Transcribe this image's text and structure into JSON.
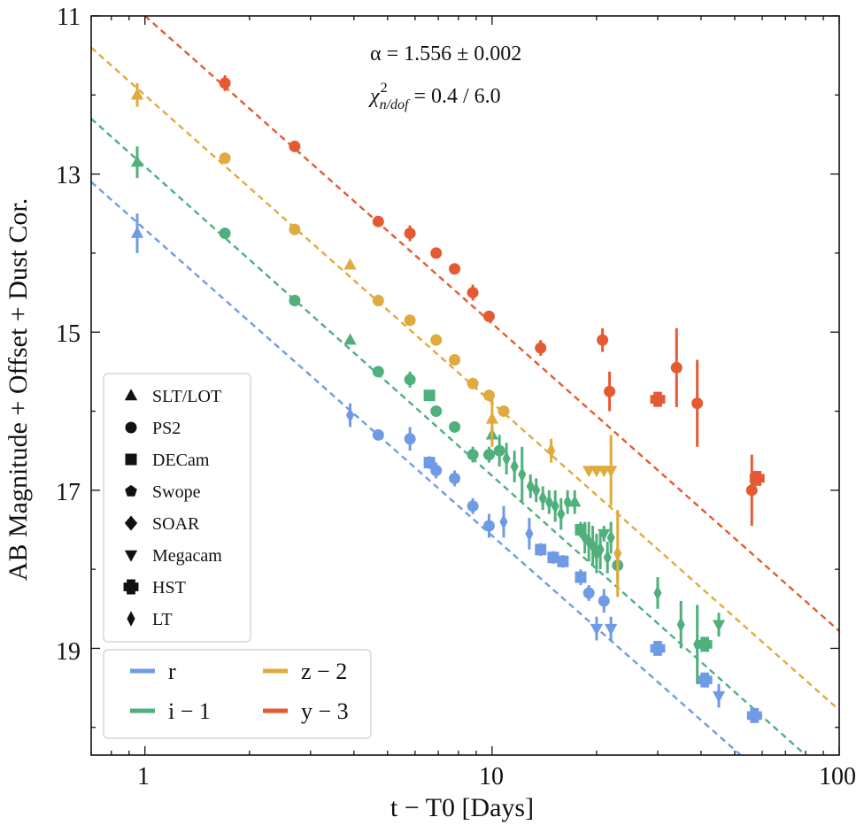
{
  "chart_data": {
    "type": "scatter",
    "xlabel": "t − T0 [Days]",
    "ylabel": "AB Magnitude + Offset + Dust Cor.",
    "xscale": "log",
    "xlim": [
      0.7,
      100
    ],
    "ylim": [
      20.35,
      11
    ],
    "y_inverted": true,
    "x_tick_labels": [
      "1",
      "10",
      "100"
    ],
    "y_tick_labels": [
      "11",
      "13",
      "15",
      "17",
      "19"
    ],
    "annotations": {
      "alpha": "α = 1.556 ± 0.002",
      "chi_symbol": "χ",
      "chi_sup": "2",
      "chi_sub": "n/dof",
      "chi_value": " = 0.4 / 6.0"
    },
    "instrument_legend": [
      {
        "label": "SLT/LOT",
        "marker": "triangle-up"
      },
      {
        "label": "PS2",
        "marker": "circle"
      },
      {
        "label": "DECam",
        "marker": "square"
      },
      {
        "label": "Swope",
        "marker": "pentagon"
      },
      {
        "label": "SOAR",
        "marker": "diamond"
      },
      {
        "label": "Megacam",
        "marker": "triangle-down"
      },
      {
        "label": "HST",
        "marker": "plus"
      },
      {
        "label": "LT",
        "marker": "thin-diamond"
      }
    ],
    "series": [
      {
        "name": "r",
        "color": "#6f9be6",
        "fit": [
          [
            0.7,
            13.1
          ],
          [
            52,
            20.35
          ]
        ],
        "points": [
          {
            "x": 0.95,
            "y": 13.75,
            "err": 0.25,
            "marker": "triangle-up"
          },
          {
            "x": 3.9,
            "y": 16.05,
            "err": 0.15,
            "marker": "thin-diamond"
          },
          {
            "x": 4.7,
            "y": 16.3,
            "err": 0.07,
            "marker": "circle"
          },
          {
            "x": 5.8,
            "y": 16.35,
            "err": 0.15,
            "marker": "circle"
          },
          {
            "x": 6.6,
            "y": 16.65,
            "err": 0.08,
            "marker": "square"
          },
          {
            "x": 6.9,
            "y": 16.75,
            "err": 0.1,
            "marker": "circle"
          },
          {
            "x": 7.8,
            "y": 16.85,
            "err": 0.1,
            "marker": "circle"
          },
          {
            "x": 8.8,
            "y": 17.2,
            "err": 0.1,
            "marker": "circle"
          },
          {
            "x": 9.8,
            "y": 17.45,
            "err": 0.15,
            "marker": "circle"
          },
          {
            "x": 10.8,
            "y": 17.4,
            "err": 0.2,
            "marker": "thin-diamond"
          },
          {
            "x": 12.8,
            "y": 17.55,
            "err": 0.2,
            "marker": "thin-diamond"
          },
          {
            "x": 13.8,
            "y": 17.75,
            "err": 0.08,
            "marker": "square"
          },
          {
            "x": 15.0,
            "y": 17.85,
            "err": 0.08,
            "marker": "square"
          },
          {
            "x": 16.0,
            "y": 17.9,
            "err": 0.08,
            "marker": "square"
          },
          {
            "x": 18.0,
            "y": 18.1,
            "err": 0.1,
            "marker": "square"
          },
          {
            "x": 19.0,
            "y": 18.3,
            "err": 0.1,
            "marker": "circle"
          },
          {
            "x": 20.0,
            "y": 18.75,
            "err": 0.15,
            "marker": "triangle-down"
          },
          {
            "x": 21.0,
            "y": 18.4,
            "err": 0.15,
            "marker": "circle"
          },
          {
            "x": 22.0,
            "y": 18.75,
            "err": 0.15,
            "marker": "triangle-down"
          },
          {
            "x": 30.0,
            "y": 19.0,
            "err": 0.05,
            "marker": "plus"
          },
          {
            "x": 41.0,
            "y": 19.4,
            "err": 0.05,
            "marker": "plus"
          },
          {
            "x": 45.0,
            "y": 19.6,
            "err": 0.15,
            "marker": "triangle-down"
          },
          {
            "x": 57.0,
            "y": 19.85,
            "err": 0.05,
            "marker": "plus"
          }
        ]
      },
      {
        "name": "i − 1",
        "color": "#4fb07c",
        "fit": [
          [
            0.7,
            12.3
          ],
          [
            80,
            20.35
          ]
        ],
        "points": [
          {
            "x": 0.95,
            "y": 12.85,
            "err": 0.2,
            "marker": "triangle-up"
          },
          {
            "x": 1.7,
            "y": 13.75,
            "err": 0.05,
            "marker": "circle"
          },
          {
            "x": 2.7,
            "y": 14.6,
            "err": 0.05,
            "marker": "circle"
          },
          {
            "x": 3.9,
            "y": 15.1,
            "err": 0.05,
            "marker": "triangle-up"
          },
          {
            "x": 4.7,
            "y": 15.5,
            "err": 0.05,
            "marker": "circle"
          },
          {
            "x": 5.8,
            "y": 15.6,
            "err": 0.1,
            "marker": "circle"
          },
          {
            "x": 6.6,
            "y": 15.8,
            "err": 0.05,
            "marker": "square"
          },
          {
            "x": 6.9,
            "y": 16.0,
            "err": 0.05,
            "marker": "circle"
          },
          {
            "x": 7.8,
            "y": 16.2,
            "err": 0.05,
            "marker": "circle"
          },
          {
            "x": 8.8,
            "y": 16.55,
            "err": 0.1,
            "marker": "circle"
          },
          {
            "x": 9.8,
            "y": 16.55,
            "err": 0.1,
            "marker": "circle"
          },
          {
            "x": 10.0,
            "y": 16.3,
            "err": 0.1,
            "marker": "triangle-up"
          },
          {
            "x": 10.5,
            "y": 16.5,
            "err": 0.2,
            "marker": "circle"
          },
          {
            "x": 11.0,
            "y": 16.6,
            "err": 0.2,
            "marker": "thin-diamond"
          },
          {
            "x": 11.6,
            "y": 16.7,
            "err": 0.2,
            "marker": "thin-diamond"
          },
          {
            "x": 12.2,
            "y": 16.8,
            "err": 0.35,
            "marker": "thin-diamond"
          },
          {
            "x": 12.9,
            "y": 16.95,
            "err": 0.15,
            "marker": "thin-diamond"
          },
          {
            "x": 13.4,
            "y": 17.0,
            "err": 0.15,
            "marker": "thin-diamond"
          },
          {
            "x": 14.0,
            "y": 17.1,
            "err": 0.15,
            "marker": "thin-diamond"
          },
          {
            "x": 14.6,
            "y": 17.15,
            "err": 0.15,
            "marker": "thin-diamond"
          },
          {
            "x": 15.2,
            "y": 17.2,
            "err": 0.2,
            "marker": "thin-diamond"
          },
          {
            "x": 15.8,
            "y": 17.3,
            "err": 0.2,
            "marker": "thin-diamond"
          },
          {
            "x": 16.5,
            "y": 17.15,
            "err": 0.15,
            "marker": "thin-diamond"
          },
          {
            "x": 17.3,
            "y": 17.15,
            "err": 0.15,
            "marker": "triangle-up"
          },
          {
            "x": 18.0,
            "y": 17.5,
            "err": 0.1,
            "marker": "square"
          },
          {
            "x": 18.5,
            "y": 17.6,
            "err": 0.2,
            "marker": "thin-diamond"
          },
          {
            "x": 19.0,
            "y": 17.65,
            "err": 0.25,
            "marker": "thin-diamond"
          },
          {
            "x": 19.5,
            "y": 17.7,
            "err": 0.25,
            "marker": "thin-diamond"
          },
          {
            "x": 20.0,
            "y": 17.8,
            "err": 0.25,
            "marker": "thin-diamond"
          },
          {
            "x": 20.5,
            "y": 17.75,
            "err": 0.25,
            "marker": "thin-diamond"
          },
          {
            "x": 21.0,
            "y": 17.55,
            "err": 0.1,
            "marker": "triangle-down"
          },
          {
            "x": 21.5,
            "y": 17.85,
            "err": 0.2,
            "marker": "thin-diamond"
          },
          {
            "x": 22.0,
            "y": 17.6,
            "err": 0.2,
            "marker": "thin-diamond"
          },
          {
            "x": 23.0,
            "y": 17.95,
            "err": 0.2,
            "marker": "circle"
          },
          {
            "x": 30.0,
            "y": 18.3,
            "err": 0.2,
            "marker": "thin-diamond"
          },
          {
            "x": 35.0,
            "y": 18.7,
            "err": 0.3,
            "marker": "thin-diamond"
          },
          {
            "x": 39.0,
            "y": 18.95,
            "err": 0.5,
            "marker": "thin-diamond"
          },
          {
            "x": 41.0,
            "y": 18.95,
            "err": 0.05,
            "marker": "plus"
          },
          {
            "x": 45.0,
            "y": 18.7,
            "err": 0.15,
            "marker": "triangle-down"
          }
        ]
      },
      {
        "name": "z − 2",
        "color": "#e0aa3e",
        "fit": [
          [
            0.7,
            11.4
          ],
          [
            100,
            19.78
          ]
        ],
        "points": [
          {
            "x": 0.95,
            "y": 12.0,
            "err": 0.15,
            "marker": "triangle-up"
          },
          {
            "x": 1.7,
            "y": 12.8,
            "err": 0.05,
            "marker": "circle"
          },
          {
            "x": 2.7,
            "y": 13.7,
            "err": 0.05,
            "marker": "circle"
          },
          {
            "x": 3.9,
            "y": 14.15,
            "err": 0.05,
            "marker": "triangle-up"
          },
          {
            "x": 4.7,
            "y": 14.6,
            "err": 0.05,
            "marker": "circle"
          },
          {
            "x": 5.8,
            "y": 14.85,
            "err": 0.05,
            "marker": "circle"
          },
          {
            "x": 6.9,
            "y": 15.1,
            "err": 0.05,
            "marker": "circle"
          },
          {
            "x": 7.8,
            "y": 15.35,
            "err": 0.05,
            "marker": "circle"
          },
          {
            "x": 8.8,
            "y": 15.65,
            "err": 0.05,
            "marker": "circle"
          },
          {
            "x": 9.8,
            "y": 15.8,
            "err": 0.05,
            "marker": "circle"
          },
          {
            "x": 10.0,
            "y": 16.1,
            "err": 0.35,
            "marker": "triangle-up"
          },
          {
            "x": 10.8,
            "y": 16.0,
            "err": 0.05,
            "marker": "circle"
          },
          {
            "x": 14.8,
            "y": 16.5,
            "err": 0.15,
            "marker": "thin-diamond"
          },
          {
            "x": 19.0,
            "y": 16.75,
            "err": 0.05,
            "marker": "triangle-down"
          },
          {
            "x": 20.0,
            "y": 16.75,
            "err": 0.05,
            "marker": "triangle-down"
          },
          {
            "x": 21.0,
            "y": 16.75,
            "err": 0.05,
            "marker": "triangle-down"
          },
          {
            "x": 22.0,
            "y": 16.75,
            "err": 0.45,
            "marker": "triangle-down"
          },
          {
            "x": 23.0,
            "y": 17.8,
            "err": 0.55,
            "marker": "thin-diamond"
          }
        ]
      },
      {
        "name": "y − 3",
        "color": "#e55a32",
        "fit": [
          [
            1.0,
            11.0
          ],
          [
            100,
            18.78
          ]
        ],
        "points": [
          {
            "x": 1.7,
            "y": 11.85,
            "err": 0.1,
            "marker": "circle"
          },
          {
            "x": 2.7,
            "y": 12.65,
            "err": 0.05,
            "marker": "circle"
          },
          {
            "x": 4.7,
            "y": 13.6,
            "err": 0.05,
            "marker": "circle"
          },
          {
            "x": 5.8,
            "y": 13.75,
            "err": 0.1,
            "marker": "circle"
          },
          {
            "x": 6.9,
            "y": 14.0,
            "err": 0.05,
            "marker": "circle"
          },
          {
            "x": 7.8,
            "y": 14.2,
            "err": 0.05,
            "marker": "circle"
          },
          {
            "x": 8.8,
            "y": 14.5,
            "err": 0.1,
            "marker": "circle"
          },
          {
            "x": 9.8,
            "y": 14.8,
            "err": 0.05,
            "marker": "circle"
          },
          {
            "x": 13.8,
            "y": 15.2,
            "err": 0.1,
            "marker": "circle"
          },
          {
            "x": 20.8,
            "y": 15.1,
            "err": 0.15,
            "marker": "circle"
          },
          {
            "x": 21.8,
            "y": 15.75,
            "err": 0.25,
            "marker": "circle"
          },
          {
            "x": 30.0,
            "y": 15.85,
            "err": 0.05,
            "marker": "plus"
          },
          {
            "x": 34.0,
            "y": 15.45,
            "err": 0.5,
            "marker": "circle"
          },
          {
            "x": 39.0,
            "y": 15.9,
            "err": 0.55,
            "marker": "circle"
          },
          {
            "x": 56.0,
            "y": 17.0,
            "err": 0.45,
            "marker": "circle"
          },
          {
            "x": 58.0,
            "y": 16.85,
            "err": 0.05,
            "marker": "plus"
          }
        ]
      }
    ],
    "series_legend_layout": [
      [
        "r",
        "z − 2"
      ],
      [
        "i − 1",
        "y − 3"
      ]
    ]
  }
}
